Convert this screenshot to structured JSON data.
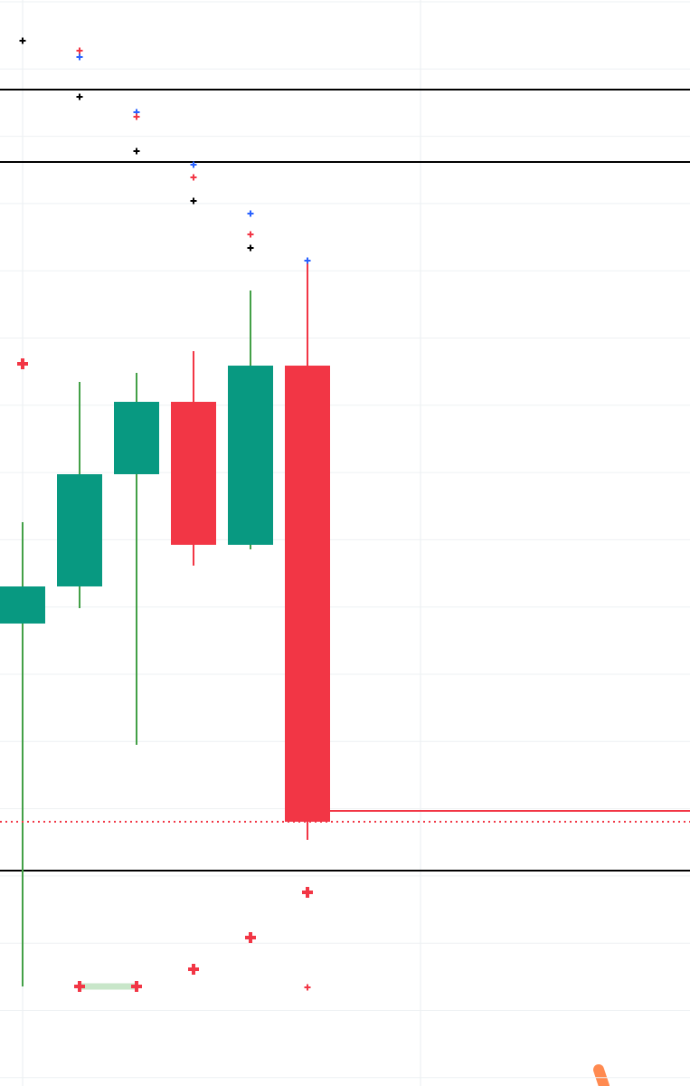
{
  "chart_data": {
    "type": "candlestick",
    "ylim": [
      0,
      1200
    ],
    "grid": true,
    "up_color": "#089981",
    "down_color": "#f23645",
    "up_wick": "#43a047",
    "down_wick": "#f23645",
    "open": [
      511,
      552,
      676,
      756,
      598,
      796
    ],
    "high": [
      623,
      778,
      788,
      812,
      879,
      910
    ],
    "low": [
      110,
      528,
      377,
      575,
      593,
      272
    ],
    "close": [
      552,
      676,
      756,
      598,
      796,
      292
    ],
    "markers": [
      {
        "color": "#000000",
        "size": "small",
        "values": [
          1155,
          1093,
          1033,
          978,
          926,
          null
        ]
      },
      {
        "color": "#2962ff",
        "size": "small",
        "values": [
          null,
          1137,
          1076,
          1018,
          964,
          912
        ]
      },
      {
        "color": "#f23645",
        "size": "small",
        "values": [
          null,
          1144,
          1071,
          1004,
          941,
          null
        ]
      },
      {
        "color": "#f23645",
        "size": "large",
        "values": [
          798,
          110,
          110,
          129,
          164,
          214
        ]
      },
      {
        "color": "#f23645",
        "size": "small",
        "values": [
          null,
          null,
          null,
          null,
          null,
          109
        ]
      }
    ],
    "levels": [
      {
        "value": 1101,
        "color": "#000000"
      },
      {
        "value": 1021,
        "color": "#000000"
      },
      {
        "value": 238,
        "color": "#000000"
      },
      {
        "value": 304,
        "color": "#f23645",
        "from": 5
      }
    ],
    "last_price_line": true
  }
}
